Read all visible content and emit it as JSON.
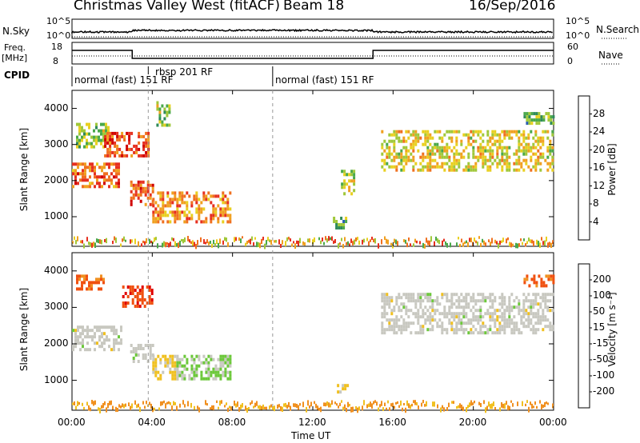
{
  "header": {
    "title": "Christmas Valley West (fitACF)",
    "beam": "Beam 18",
    "date": "16/Sep/2016"
  },
  "status_panels": {
    "nsky_label": "N.Sky",
    "nsky_ticks": [
      "10^5",
      "10^0"
    ],
    "nsearch_label": "N.Search",
    "nsearch_ticks": [
      "10^5",
      "10^0"
    ],
    "freq_label": "Freq.",
    "freq_unit": "[MHz]",
    "freq_ticks": [
      "18",
      "8"
    ],
    "nave_label": "Nave",
    "nave_ticks": [
      "60",
      "0"
    ],
    "cpid_label": "CPID",
    "cpid_segments": [
      {
        "label": "normal (fast) 151 RF",
        "start_h": 0.0,
        "end_h": 3.8
      },
      {
        "label": "rbsp 201 RF",
        "start_h": 3.8,
        "end_h": 10.0
      },
      {
        "label": "normal (fast) 151 RF",
        "start_h": 10.0,
        "end_h": 24.0
      }
    ]
  },
  "colorbars": {
    "power": {
      "label": "Power [dB]",
      "ticks": [
        "28",
        "24",
        "20",
        "16",
        "12",
        "8",
        "4"
      ],
      "colors": [
        "#1f1fe0",
        "#2a5fb0",
        "#2f8a5a",
        "#4aa84a",
        "#a0c83a",
        "#e8d020",
        "#f0a020",
        "#f07020",
        "#e63020",
        "#d00000"
      ]
    },
    "velocity": {
      "label": "Velocity [m s⁻¹]",
      "ticks": [
        "200",
        "100",
        "50",
        "15",
        "-15",
        "-50",
        "-100",
        "-200"
      ],
      "colors": [
        "#1c2fa8",
        "#2c6ab8",
        "#2e8a52",
        "#6cc83a",
        "#c8c8c0",
        "#f0c020",
        "#f09020",
        "#f05010",
        "#e00000"
      ]
    }
  },
  "axes": {
    "ylabel": "Slant Range [km]",
    "xlabel": "Time UT",
    "xticks": [
      "00:00",
      "04:00",
      "08:00",
      "12:00",
      "16:00",
      "20:00",
      "00:00"
    ],
    "yticks": [
      "4000",
      "3000",
      "2000",
      "1000"
    ]
  },
  "chart_data": [
    {
      "type": "heatmap",
      "name": "power",
      "title": "Christmas Valley West (fitACF)",
      "xlabel": "Time UT",
      "ylabel": "Slant Range [km]",
      "xlim_hours": [
        0,
        24
      ],
      "ylim_km": [
        180,
        4500
      ],
      "colorbar_label": "Power [dB]",
      "colorbar_range": [
        0,
        30
      ],
      "regions": [
        {
          "t0": 0.0,
          "t1": 2.3,
          "r0": 1850,
          "r1": 2500,
          "level": 0.75
        },
        {
          "t0": 0.2,
          "t1": 1.8,
          "r0": 2900,
          "r1": 3600,
          "level": 0.45
        },
        {
          "t0": 1.6,
          "t1": 3.8,
          "r0": 2700,
          "r1": 3350,
          "level": 0.8
        },
        {
          "t0": 2.9,
          "t1": 4.0,
          "r0": 1300,
          "r1": 2000,
          "level": 0.78
        },
        {
          "t0": 4.0,
          "t1": 7.9,
          "r0": 900,
          "r1": 1700,
          "level": 0.7
        },
        {
          "t0": 4.2,
          "t1": 4.8,
          "r0": 3500,
          "r1": 4200,
          "level": 0.45
        },
        {
          "t0": 13.0,
          "t1": 13.6,
          "r0": 650,
          "r1": 1000,
          "level": 0.35
        },
        {
          "t0": 13.4,
          "t1": 14.1,
          "r0": 1600,
          "r1": 2300,
          "level": 0.5
        },
        {
          "t0": 15.4,
          "t1": 24.0,
          "r0": 2300,
          "r1": 3400,
          "level": 0.55
        },
        {
          "t0": 22.5,
          "t1": 24.0,
          "r0": 3600,
          "r1": 3900,
          "level": 0.35
        }
      ]
    },
    {
      "type": "heatmap",
      "name": "velocity",
      "xlabel": "Time UT",
      "ylabel": "Slant Range [km]",
      "xlim_hours": [
        0,
        24
      ],
      "ylim_km": [
        180,
        4500
      ],
      "colorbar_label": "Velocity [m s⁻¹]",
      "colorbar_range": [
        -250,
        250
      ],
      "regions": [
        {
          "t0": 0.0,
          "t1": 2.4,
          "r0": 1800,
          "r1": 2500,
          "vel": 0
        },
        {
          "t0": 0.2,
          "t1": 1.6,
          "r0": 3500,
          "r1": 3900,
          "vel": -150
        },
        {
          "t0": 2.5,
          "t1": 4.0,
          "r0": 3000,
          "r1": 3600,
          "vel": -180
        },
        {
          "t0": 2.9,
          "t1": 4.0,
          "r0": 1500,
          "r1": 2000,
          "vel": 0
        },
        {
          "t0": 4.0,
          "t1": 5.2,
          "r0": 1000,
          "r1": 1700,
          "vel": -40
        },
        {
          "t0": 5.2,
          "t1": 7.9,
          "r0": 1000,
          "r1": 1700,
          "vel": 30
        },
        {
          "t0": 13.2,
          "t1": 13.7,
          "r0": 700,
          "r1": 900,
          "vel": -40
        },
        {
          "t0": 15.4,
          "t1": 24.0,
          "r0": 2300,
          "r1": 3400,
          "vel": 0
        },
        {
          "t0": 22.5,
          "t1": 24.0,
          "r0": 3600,
          "r1": 3900,
          "vel": -150
        }
      ]
    }
  ]
}
